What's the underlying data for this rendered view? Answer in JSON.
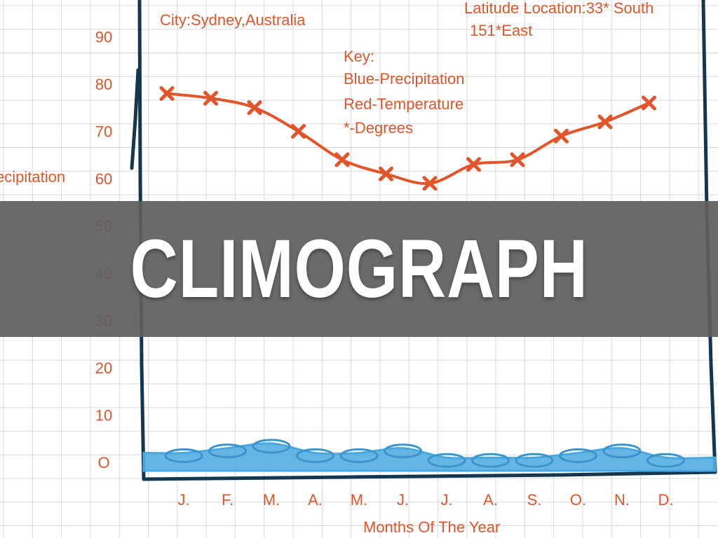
{
  "banner": {
    "title": "CLIMOGRAPH"
  },
  "annotations": {
    "city": "City:Sydney,Australia",
    "latitude": "Latitude Location:33* South",
    "longitude": "151*East",
    "key_title": "Key:",
    "key_blue": "Blue-Precipitation",
    "key_red": "Red-Temperature",
    "key_degrees": "*-Degrees"
  },
  "colors": {
    "temperature": "#e2552a",
    "precipitation": "#4aa8e0",
    "axis": "#14364f",
    "grid": "#d9d9d9",
    "banner": "#5f5f5f"
  },
  "chart_data": {
    "type": "line",
    "title": "",
    "xlabel": "Months Of The Year",
    "ylabel": "Precipitation",
    "categories": [
      "J.",
      "F.",
      "M.",
      "A.",
      "M.",
      "J.",
      "J.",
      "A.",
      "S.",
      "O.",
      "N.",
      "D."
    ],
    "yticks": [
      "O",
      "10",
      "20",
      "30",
      "40",
      "50",
      "60",
      "70",
      "80",
      "90"
    ],
    "ylim": [
      0,
      90
    ],
    "grid": true,
    "series": [
      {
        "name": "Temperature",
        "values": [
          78,
          77,
          75,
          70,
          64,
          61,
          59,
          63,
          64,
          69,
          72,
          76
        ]
      },
      {
        "name": "Precipitation",
        "values": [
          2,
          3,
          4,
          2,
          2,
          3,
          1,
          1,
          1,
          2,
          3,
          1
        ]
      }
    ]
  }
}
